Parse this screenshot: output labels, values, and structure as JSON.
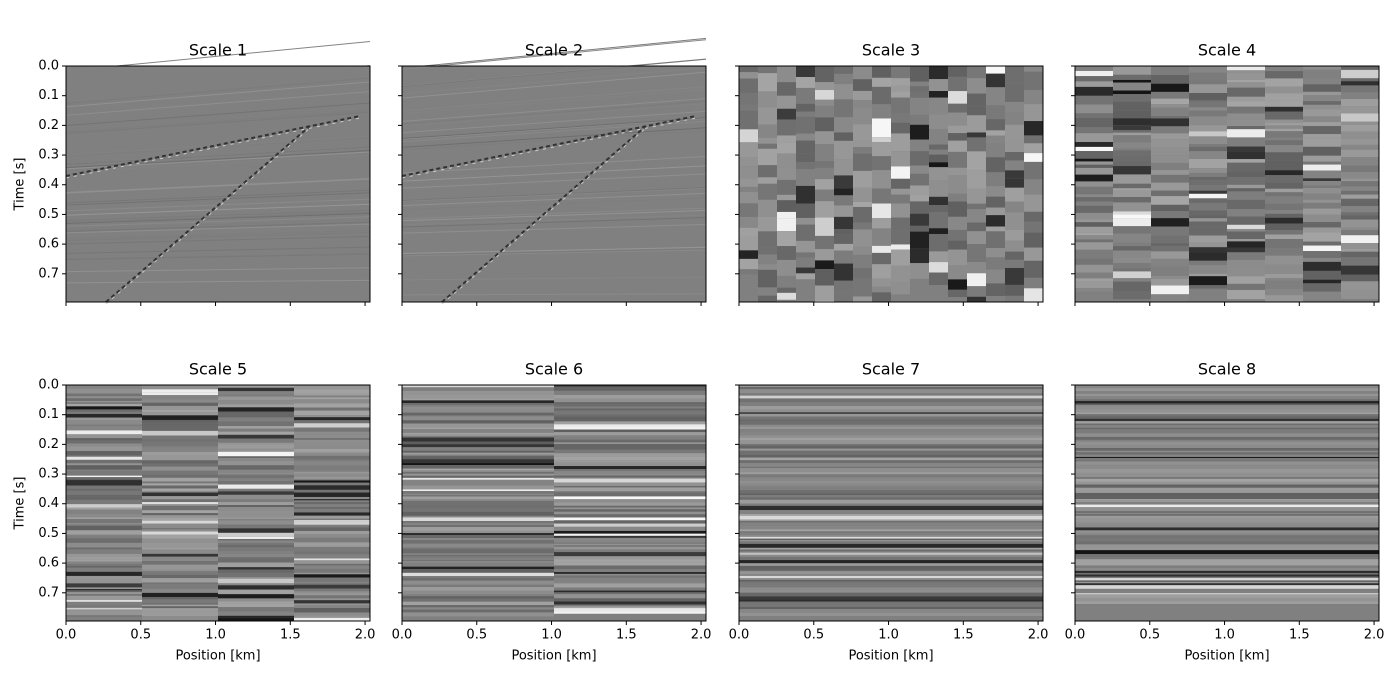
{
  "chart_data": [
    {
      "type": "image",
      "title": "Scale 1",
      "ylabel": "Time [s]",
      "xlim": [
        0,
        2.033
      ],
      "ylim": [
        0.795,
        0
      ],
      "xticks": [
        0,
        0.5,
        1,
        1.5,
        2
      ],
      "yticks": [
        {
          "value": 0,
          "label": "0.0"
        },
        {
          "value": 0.1,
          "label": "0.1"
        },
        {
          "value": 0.2,
          "label": "0.2"
        },
        {
          "value": 0.3,
          "label": "0.3"
        },
        {
          "value": 0.4,
          "label": "0.4"
        },
        {
          "value": 0.5,
          "label": "0.5"
        },
        {
          "value": 0.6,
          "label": "0.6"
        },
        {
          "value": 0.7,
          "label": "0.7"
        }
      ]
    },
    {
      "type": "image",
      "title": "Scale 2",
      "xlim": [
        0,
        2.033
      ],
      "ylim": [
        0.795,
        0
      ],
      "xticks": [
        0,
        0.5,
        1,
        1.5,
        2
      ],
      "yticks": [
        0,
        0.1,
        0.2,
        0.3,
        0.4,
        0.5,
        0.6,
        0.7
      ]
    },
    {
      "type": "image",
      "title": "Scale 3",
      "xlim": [
        0,
        2.033
      ],
      "ylim": [
        0.795,
        0
      ],
      "xticks": [
        0,
        0.5,
        1,
        1.5,
        2
      ],
      "yticks": [
        0,
        0.1,
        0.2,
        0.3,
        0.4,
        0.5,
        0.6,
        0.7
      ]
    },
    {
      "type": "image",
      "title": "Scale 4",
      "xlim": [
        0,
        2.033
      ],
      "ylim": [
        0.795,
        0
      ],
      "xticks": [
        0,
        0.5,
        1,
        1.5,
        2
      ],
      "yticks": [
        0,
        0.1,
        0.2,
        0.3,
        0.4,
        0.5,
        0.6,
        0.7
      ]
    },
    {
      "type": "image",
      "title": "Scale 5",
      "xlabel": "Position [km]",
      "ylabel": "Time [s]",
      "xlim": [
        0,
        2.033
      ],
      "ylim": [
        0.795,
        0
      ],
      "xticks": [
        {
          "value": 0,
          "label": "0.0"
        },
        {
          "value": 0.5,
          "label": "0.5"
        },
        {
          "value": 1,
          "label": "1.0"
        },
        {
          "value": 1.5,
          "label": "1.5"
        },
        {
          "value": 2,
          "label": "2.0"
        }
      ],
      "yticks": [
        {
          "value": 0,
          "label": "0.0"
        },
        {
          "value": 0.1,
          "label": "0.1"
        },
        {
          "value": 0.2,
          "label": "0.2"
        },
        {
          "value": 0.3,
          "label": "0.3"
        },
        {
          "value": 0.4,
          "label": "0.4"
        },
        {
          "value": 0.5,
          "label": "0.5"
        },
        {
          "value": 0.6,
          "label": "0.6"
        },
        {
          "value": 0.7,
          "label": "0.7"
        }
      ]
    },
    {
      "type": "image",
      "title": "Scale 6",
      "xlabel": "Position [km]",
      "xlim": [
        0,
        2.033
      ],
      "ylim": [
        0.795,
        0
      ],
      "xticks": [
        {
          "value": 0,
          "label": "0.0"
        },
        {
          "value": 0.5,
          "label": "0.5"
        },
        {
          "value": 1,
          "label": "1.0"
        },
        {
          "value": 1.5,
          "label": "1.5"
        },
        {
          "value": 2,
          "label": "2.0"
        }
      ],
      "yticks": [
        0,
        0.1,
        0.2,
        0.3,
        0.4,
        0.5,
        0.6,
        0.7
      ]
    },
    {
      "type": "image",
      "title": "Scale 7",
      "xlabel": "Position [km]",
      "xlim": [
        0,
        2.033
      ],
      "ylim": [
        0.795,
        0
      ],
      "xticks": [
        {
          "value": 0,
          "label": "0.0"
        },
        {
          "value": 0.5,
          "label": "0.5"
        },
        {
          "value": 1,
          "label": "1.0"
        },
        {
          "value": 1.5,
          "label": "1.5"
        },
        {
          "value": 2,
          "label": "2.0"
        }
      ],
      "yticks": [
        0,
        0.1,
        0.2,
        0.3,
        0.4,
        0.5,
        0.6,
        0.7
      ]
    },
    {
      "type": "image",
      "title": "Scale 8",
      "xlabel": "Position [km]",
      "xlim": [
        0,
        2.033
      ],
      "ylim": [
        0.795,
        0
      ],
      "xticks": [
        {
          "value": 0,
          "label": "0.0"
        },
        {
          "value": 0.5,
          "label": "0.5"
        },
        {
          "value": 1,
          "label": "1.0"
        },
        {
          "value": 1.5,
          "label": "1.5"
        },
        {
          "value": 2,
          "label": "2.0"
        }
      ],
      "yticks": [
        0,
        0.1,
        0.2,
        0.3,
        0.4,
        0.5,
        0.6,
        0.7
      ]
    }
  ]
}
